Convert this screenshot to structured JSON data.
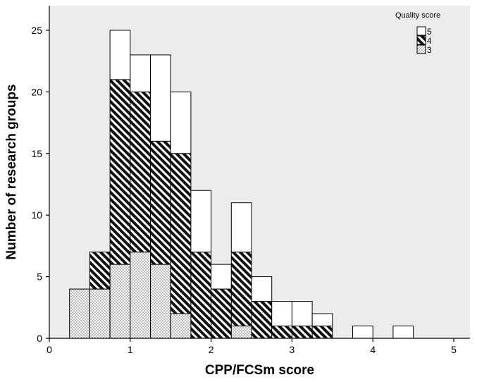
{
  "chart_data": {
    "type": "bar",
    "stacked": true,
    "xlabel": "CPP/FCSm score",
    "ylabel": "Number of research groups",
    "xlim": [
      0,
      5.2
    ],
    "ylim": [
      0,
      27
    ],
    "x_ticks": [
      0,
      1,
      2,
      3,
      4,
      5
    ],
    "y_ticks": [
      0,
      5,
      10,
      15,
      20,
      25
    ],
    "bin_width": 0.25,
    "bins": [
      0.25,
      0.5,
      0.75,
      1.0,
      1.25,
      1.5,
      1.75,
      2.0,
      2.25,
      2.5,
      2.75,
      3.0,
      3.25,
      3.5,
      3.75,
      4.0,
      4.25
    ],
    "series": [
      {
        "name": "3",
        "pattern": "dots",
        "values": [
          4,
          4,
          6,
          7,
          6,
          2,
          0,
          0,
          1,
          0,
          0,
          0,
          0,
          0,
          0,
          0,
          0
        ]
      },
      {
        "name": "4",
        "pattern": "hatch",
        "values": [
          0,
          3,
          15,
          13,
          10,
          13,
          7,
          4,
          6,
          3,
          1,
          1,
          1,
          0,
          0,
          0,
          0
        ]
      },
      {
        "name": "5",
        "pattern": "white",
        "values": [
          0,
          0,
          4,
          3,
          7,
          5,
          5,
          2,
          4,
          2,
          2,
          2,
          1,
          0,
          1,
          0,
          1
        ]
      }
    ],
    "legend": {
      "title": "Quality score",
      "position": "top-right",
      "entries": [
        "5",
        "4",
        "3"
      ]
    },
    "grid": false,
    "plot_background": "#ececec"
  }
}
